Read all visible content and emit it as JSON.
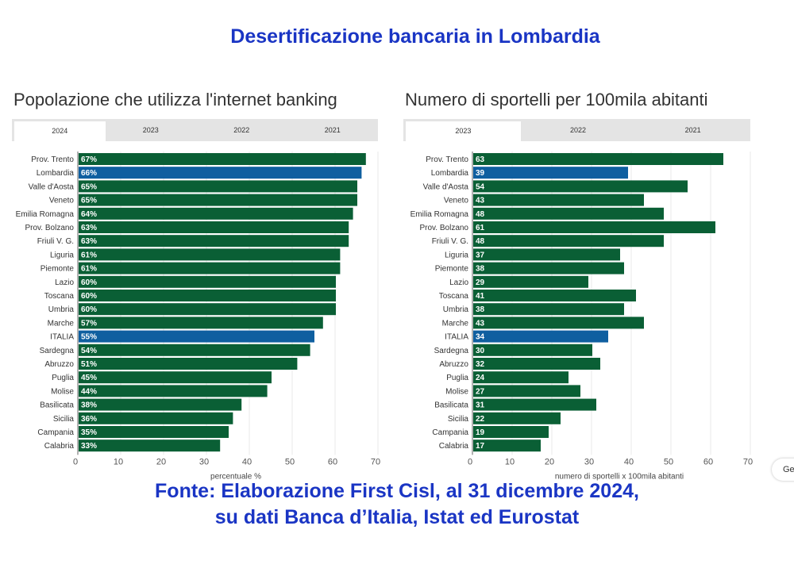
{
  "title": "Desertificazione bancaria in Lombardia",
  "source_line1": "Fonte: Elaborazione First Cisl, al 31 dicembre 2024,",
  "source_line2": "su dati Banca d’Italia, Istat ed Eurostat",
  "side_button": "Ge",
  "colors": {
    "bar": "#0a5f35",
    "highlight": "#0f5fa0"
  },
  "chart_data": [
    {
      "type": "bar",
      "orientation": "horizontal",
      "title": "Popolazione che utilizza l'internet banking",
      "tabs": [
        "2024",
        "2023",
        "2022",
        "2021"
      ],
      "active_tab": "2024",
      "xlabel": "percentuale %",
      "xlim": [
        0,
        70
      ],
      "xticks": [
        0,
        10,
        20,
        30,
        40,
        50,
        60,
        70
      ],
      "suffix": "%",
      "categories": [
        "Prov. Trento",
        "Lombardia",
        "Valle d'Aosta",
        "Veneto",
        "Emilia Romagna",
        "Prov. Bolzano",
        "Friuli V. G.",
        "Liguria",
        "Piemonte",
        "Lazio",
        "Toscana",
        "Umbria",
        "Marche",
        "ITALIA",
        "Sardegna",
        "Abruzzo",
        "Puglia",
        "Molise",
        "Basilicata",
        "Sicilia",
        "Campania",
        "Calabria"
      ],
      "values": [
        67,
        66,
        65,
        65,
        64,
        63,
        63,
        61,
        61,
        60,
        60,
        60,
        57,
        55,
        54,
        51,
        45,
        44,
        38,
        36,
        35,
        33
      ],
      "highlighted": [
        "Lombardia",
        "ITALIA"
      ]
    },
    {
      "type": "bar",
      "orientation": "horizontal",
      "title": "Numero di sportelli per 100mila abitanti",
      "tabs": [
        "2023",
        "2022",
        "2021"
      ],
      "active_tab": "2023",
      "xlabel": "numero di sportelli x 100mila abitanti",
      "xlim": [
        0,
        70
      ],
      "xticks": [
        0,
        10,
        20,
        30,
        40,
        50,
        60,
        70
      ],
      "suffix": "",
      "categories": [
        "Prov. Trento",
        "Lombardia",
        "Valle d'Aosta",
        "Veneto",
        "Emilia Romagna",
        "Prov. Bolzano",
        "Friuli V. G.",
        "Liguria",
        "Piemonte",
        "Lazio",
        "Toscana",
        "Umbria",
        "Marche",
        "ITALIA",
        "Sardegna",
        "Abruzzo",
        "Puglia",
        "Molise",
        "Basilicata",
        "Sicilia",
        "Campania",
        "Calabria"
      ],
      "values": [
        63,
        39,
        54,
        43,
        48,
        61,
        48,
        37,
        38,
        29,
        41,
        38,
        43,
        34,
        30,
        32,
        24,
        27,
        31,
        22,
        19,
        17
      ],
      "highlighted": [
        "Lombardia",
        "ITALIA"
      ]
    }
  ]
}
